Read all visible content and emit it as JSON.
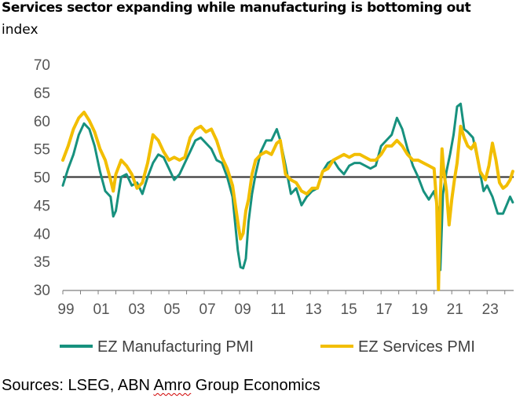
{
  "chart_data": {
    "type": "line",
    "title": "Services sector expanding while manufacturing is bottoming out",
    "ylabel": "index",
    "xlabel": "",
    "ylim": [
      30,
      70
    ],
    "xlim": [
      1999,
      2024.5
    ],
    "yticks": [
      30,
      35,
      40,
      45,
      50,
      55,
      60,
      65,
      70
    ],
    "xtick_labels": [
      "99",
      "01",
      "03",
      "05",
      "07",
      "09",
      "11",
      "13",
      "15",
      "17",
      "19",
      "21",
      "23"
    ],
    "xtick_years": [
      1999,
      2001,
      2003,
      2005,
      2007,
      2009,
      2011,
      2013,
      2015,
      2017,
      2019,
      2021,
      2023
    ],
    "reference_line": 50,
    "grid": false,
    "legend_position": "bottom",
    "series": [
      {
        "name": "EZ Manufacturing PMI",
        "color": "#17917e",
        "x": [
          1999.0,
          1999.3,
          1999.6,
          1999.9,
          2000.2,
          2000.5,
          2000.8,
          2001.1,
          2001.4,
          2001.7,
          2001.85,
          2002.0,
          2002.3,
          2002.6,
          2002.9,
          2003.2,
          2003.5,
          2003.8,
          2004.1,
          2004.4,
          2004.7,
          2005.0,
          2005.3,
          2005.6,
          2005.9,
          2006.2,
          2006.5,
          2006.8,
          2007.1,
          2007.4,
          2007.7,
          2008.0,
          2008.3,
          2008.6,
          2008.9,
          2009.05,
          2009.2,
          2009.35,
          2009.5,
          2009.7,
          2009.9,
          2010.2,
          2010.5,
          2010.8,
          2011.1,
          2011.3,
          2011.6,
          2011.9,
          2012.2,
          2012.5,
          2012.8,
          2013.1,
          2013.4,
          2013.7,
          2014.0,
          2014.3,
          2014.6,
          2014.9,
          2015.2,
          2015.5,
          2015.8,
          2016.1,
          2016.4,
          2016.7,
          2017.0,
          2017.3,
          2017.6,
          2017.9,
          2018.2,
          2018.5,
          2018.8,
          2019.1,
          2019.4,
          2019.7,
          2020.0,
          2020.2,
          2020.35,
          2020.5,
          2020.7,
          2020.9,
          2021.1,
          2021.3,
          2021.5,
          2021.7,
          2021.9,
          2022.2,
          2022.5,
          2022.8,
          2023.0,
          2023.3,
          2023.6,
          2023.9,
          2024.1,
          2024.3,
          2024.45
        ],
        "values": [
          48.5,
          51.5,
          54.0,
          57.5,
          59.5,
          58.5,
          55.5,
          51.0,
          47.5,
          46.5,
          43.0,
          44.0,
          50.0,
          50.5,
          48.5,
          49.0,
          47.0,
          50.0,
          52.5,
          54.0,
          53.5,
          51.5,
          49.5,
          50.5,
          52.5,
          54.5,
          56.5,
          57.0,
          56.0,
          55.0,
          53.0,
          52.5,
          50.0,
          46.5,
          37.0,
          34.0,
          33.8,
          35.5,
          42.0,
          47.0,
          50.5,
          54.5,
          56.5,
          56.5,
          58.5,
          56.5,
          52.0,
          47.0,
          48.0,
          45.0,
          46.5,
          47.5,
          48.0,
          51.0,
          52.5,
          53.0,
          51.5,
          50.5,
          52.0,
          52.5,
          52.5,
          52.0,
          51.5,
          52.0,
          55.5,
          56.5,
          57.5,
          60.5,
          58.5,
          55.0,
          52.0,
          50.0,
          47.5,
          46.0,
          47.5,
          44.5,
          33.5,
          47.0,
          51.0,
          54.0,
          57.5,
          62.5,
          63.0,
          58.5,
          58.0,
          57.0,
          52.5,
          47.5,
          48.5,
          46.5,
          43.5,
          43.5,
          45.0,
          46.5,
          45.5
        ]
      },
      {
        "name": "EZ Services PMI",
        "color": "#f2be00",
        "x": [
          1999.0,
          1999.3,
          1999.6,
          1999.9,
          2000.2,
          2000.5,
          2000.8,
          2001.1,
          2001.4,
          2001.7,
          2001.85,
          2002.0,
          2002.3,
          2002.6,
          2002.9,
          2003.2,
          2003.5,
          2003.8,
          2004.1,
          2004.4,
          2004.7,
          2005.0,
          2005.3,
          2005.6,
          2005.9,
          2006.2,
          2006.5,
          2006.8,
          2007.1,
          2007.4,
          2007.7,
          2008.0,
          2008.3,
          2008.6,
          2008.9,
          2009.05,
          2009.2,
          2009.35,
          2009.5,
          2009.7,
          2009.9,
          2010.2,
          2010.5,
          2010.8,
          2011.1,
          2011.3,
          2011.6,
          2011.9,
          2012.2,
          2012.5,
          2012.8,
          2013.1,
          2013.4,
          2013.7,
          2014.0,
          2014.3,
          2014.6,
          2014.9,
          2015.2,
          2015.5,
          2015.8,
          2016.1,
          2016.4,
          2016.7,
          2017.0,
          2017.3,
          2017.6,
          2017.9,
          2018.2,
          2018.5,
          2018.8,
          2019.1,
          2019.4,
          2019.7,
          2020.0,
          2020.15,
          2020.25,
          2020.35,
          2020.45,
          2020.55,
          2020.7,
          2020.85,
          2021.0,
          2021.15,
          2021.3,
          2021.5,
          2021.7,
          2021.9,
          2022.1,
          2022.3,
          2022.6,
          2022.9,
          2023.1,
          2023.3,
          2023.5,
          2023.7,
          2023.9,
          2024.1,
          2024.3,
          2024.45
        ],
        "values": [
          53.0,
          55.5,
          58.5,
          60.5,
          61.5,
          60.0,
          58.0,
          55.0,
          53.0,
          49.5,
          47.5,
          50.5,
          53.0,
          52.0,
          50.5,
          48.0,
          49.0,
          52.5,
          57.5,
          56.5,
          54.5,
          53.0,
          53.5,
          53.0,
          53.5,
          57.0,
          58.5,
          59.0,
          58.0,
          58.5,
          56.5,
          53.5,
          51.5,
          48.5,
          42.0,
          39.0,
          40.0,
          44.0,
          46.0,
          50.5,
          53.0,
          54.0,
          54.5,
          54.0,
          56.0,
          56.5,
          50.5,
          49.5,
          49.0,
          47.5,
          47.0,
          48.0,
          48.0,
          51.0,
          51.5,
          53.0,
          53.5,
          54.0,
          53.5,
          54.0,
          54.0,
          53.5,
          53.0,
          53.0,
          54.0,
          55.5,
          55.5,
          56.5,
          55.5,
          54.0,
          53.0,
          53.0,
          52.5,
          52.0,
          51.5,
          45.0,
          30.0,
          46.0,
          55.0,
          51.0,
          47.5,
          41.5,
          46.0,
          49.5,
          52.5,
          59.0,
          57.0,
          55.5,
          55.0,
          56.0,
          51.0,
          49.5,
          52.0,
          56.0,
          53.0,
          49.0,
          48.0,
          48.5,
          49.5,
          51.0
        ]
      }
    ]
  },
  "source_label": "Sources: LSEG, ABN ",
  "source_word_flagged": "Amro",
  "source_tail": " Group Economics"
}
